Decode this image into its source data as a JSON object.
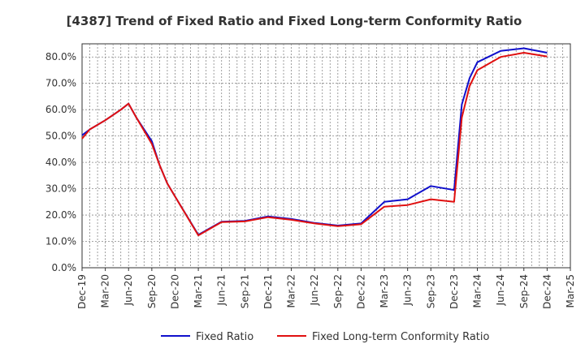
{
  "chart_data": {
    "type": "line",
    "title": "[4387]  Trend of Fixed Ratio and Fixed Long-term Conformity Ratio",
    "xlabel": "",
    "ylabel": "",
    "ylim": [
      0,
      85
    ],
    "grid": true,
    "legend_position": "bottom",
    "x_ticks": [
      "Dec-19",
      "Mar-20",
      "Jun-20",
      "Sep-20",
      "Dec-20",
      "Mar-21",
      "Jun-21",
      "Sep-21",
      "Dec-21",
      "Mar-22",
      "Jun-22",
      "Sep-22",
      "Dec-22",
      "Mar-23",
      "Jun-23",
      "Sep-23",
      "Dec-23",
      "Mar-24",
      "Jun-24",
      "Sep-24",
      "Dec-24",
      "Mar-25"
    ],
    "y_ticks": [
      "0.0%",
      "10.0%",
      "20.0%",
      "30.0%",
      "40.0%",
      "50.0%",
      "60.0%",
      "70.0%",
      "80.0%"
    ],
    "y_tick_values": [
      0,
      10,
      20,
      30,
      40,
      50,
      60,
      70,
      80
    ],
    "series": [
      {
        "name": "Fixed Ratio",
        "color": "#1010cc",
        "points": [
          [
            "Dec-19",
            50.3
          ],
          [
            "Jan-20",
            52.5
          ],
          [
            "Mar-20",
            56.0
          ],
          [
            "May-20",
            60.0
          ],
          [
            "Jun-20",
            62.3
          ],
          [
            "Jul-20",
            57.0
          ],
          [
            "Sep-20",
            48.0
          ],
          [
            "Oct-20",
            39.0
          ],
          [
            "Nov-20",
            32.0
          ],
          [
            "Dec-20",
            27.0
          ],
          [
            "Mar-21",
            12.5
          ],
          [
            "Jun-21",
            17.5
          ],
          [
            "Sep-21",
            17.8
          ],
          [
            "Dec-21",
            19.5
          ],
          [
            "Mar-22",
            18.5
          ],
          [
            "Jun-22",
            17.0
          ],
          [
            "Sep-22",
            16.0
          ],
          [
            "Dec-22",
            16.8
          ],
          [
            "Mar-23",
            25.0
          ],
          [
            "Jun-23",
            26.0
          ],
          [
            "Sep-23",
            31.0
          ],
          [
            "Dec-23",
            29.5
          ],
          [
            "Jan-24",
            62.0
          ],
          [
            "Feb-24",
            72.0
          ],
          [
            "Mar-24",
            78.0
          ],
          [
            "Jun-24",
            82.3
          ],
          [
            "Sep-24",
            83.3
          ],
          [
            "Dec-24",
            81.6
          ]
        ]
      },
      {
        "name": "Fixed Long-term Conformity Ratio",
        "color": "#e01010",
        "points": [
          [
            "Dec-19",
            49.0
          ],
          [
            "Jan-20",
            52.5
          ],
          [
            "Mar-20",
            56.0
          ],
          [
            "May-20",
            60.0
          ],
          [
            "Jun-20",
            62.3
          ],
          [
            "Jul-20",
            57.0
          ],
          [
            "Sep-20",
            47.0
          ],
          [
            "Oct-20",
            39.0
          ],
          [
            "Nov-20",
            32.0
          ],
          [
            "Dec-20",
            27.0
          ],
          [
            "Mar-21",
            12.3
          ],
          [
            "Jun-21",
            17.3
          ],
          [
            "Sep-21",
            17.6
          ],
          [
            "Dec-21",
            19.2
          ],
          [
            "Mar-22",
            18.2
          ],
          [
            "Jun-22",
            16.8
          ],
          [
            "Sep-22",
            15.8
          ],
          [
            "Dec-22",
            16.5
          ],
          [
            "Mar-23",
            23.2
          ],
          [
            "Jun-23",
            23.8
          ],
          [
            "Sep-23",
            26.0
          ],
          [
            "Dec-23",
            25.0
          ],
          [
            "Jan-24",
            57.0
          ],
          [
            "Feb-24",
            69.0
          ],
          [
            "Mar-24",
            75.0
          ],
          [
            "Jun-24",
            80.0
          ],
          [
            "Sep-24",
            81.6
          ],
          [
            "Dec-24",
            80.2
          ]
        ]
      }
    ]
  }
}
